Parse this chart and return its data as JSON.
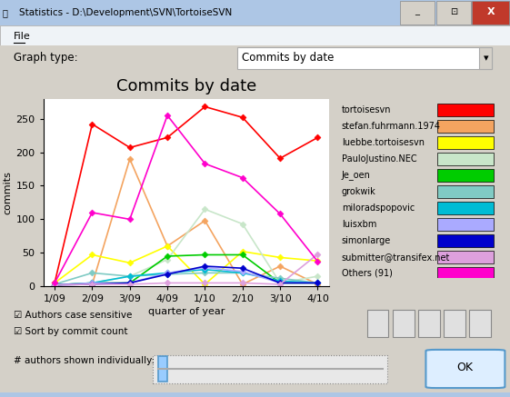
{
  "title": "Commits by date",
  "xlabel": "quarter of year",
  "ylabel": "commits",
  "x_labels": [
    "1/09",
    "2/09",
    "3/09",
    "4/09",
    "1/10",
    "2/10",
    "3/10",
    "4/10"
  ],
  "series": [
    {
      "label": "tortoisesvn",
      "color": "#ff0000",
      "values": [
        5,
        242,
        207,
        222,
        268,
        252,
        191,
        222
      ]
    },
    {
      "label": "stefan.fuhrmann.1974",
      "color": "#f4a460",
      "values": [
        3,
        3,
        190,
        60,
        98,
        3,
        30,
        3
      ]
    },
    {
      "label": "luebbe.tortoisesvn",
      "color": "#ffff00",
      "values": [
        5,
        47,
        35,
        60,
        3,
        52,
        43,
        38
      ]
    },
    {
      "label": "PauloJustino.NEC",
      "color": "#c8e6c9",
      "values": [
        2,
        5,
        15,
        40,
        115,
        93,
        5,
        15
      ]
    },
    {
      "label": "Je_oen",
      "color": "#00cc00",
      "values": [
        2,
        5,
        5,
        45,
        47,
        47,
        5,
        5
      ]
    },
    {
      "label": "grokwik",
      "color": "#80cbc4",
      "values": [
        3,
        20,
        15,
        18,
        20,
        20,
        12,
        5
      ]
    },
    {
      "label": "miloradspopovic",
      "color": "#00bcd4",
      "values": [
        2,
        5,
        15,
        20,
        25,
        20,
        8,
        5
      ]
    },
    {
      "label": "luisxbm",
      "color": "#aaaaff",
      "values": [
        2,
        5,
        5,
        20,
        28,
        22,
        5,
        5
      ]
    },
    {
      "label": "simonlarge",
      "color": "#0000cc",
      "values": [
        2,
        3,
        5,
        18,
        30,
        27,
        5,
        5
      ]
    },
    {
      "label": "submitter@transifex.net",
      "color": "#dda0dd",
      "values": [
        2,
        3,
        3,
        5,
        5,
        5,
        3,
        48
      ]
    },
    {
      "label": "Others (91)",
      "color": "#ff00cc",
      "values": [
        5,
        110,
        100,
        255,
        183,
        162,
        108,
        37
      ]
    }
  ],
  "ylim": [
    0,
    280
  ],
  "yticks": [
    0,
    50,
    100,
    150,
    200,
    250
  ],
  "plot_bg": "#ffffff",
  "chart_frame_bg": "#e8e8f0",
  "fig_bg": "#d4d0c8",
  "titlebar_bg": "#adc6e5",
  "titlebar_gradient": "#6fa0d0",
  "menubar_bg": "#eff3f7",
  "title_fontsize": 13,
  "legend_fontsize": 7,
  "tick_fontsize": 8,
  "axis_label_fontsize": 8
}
